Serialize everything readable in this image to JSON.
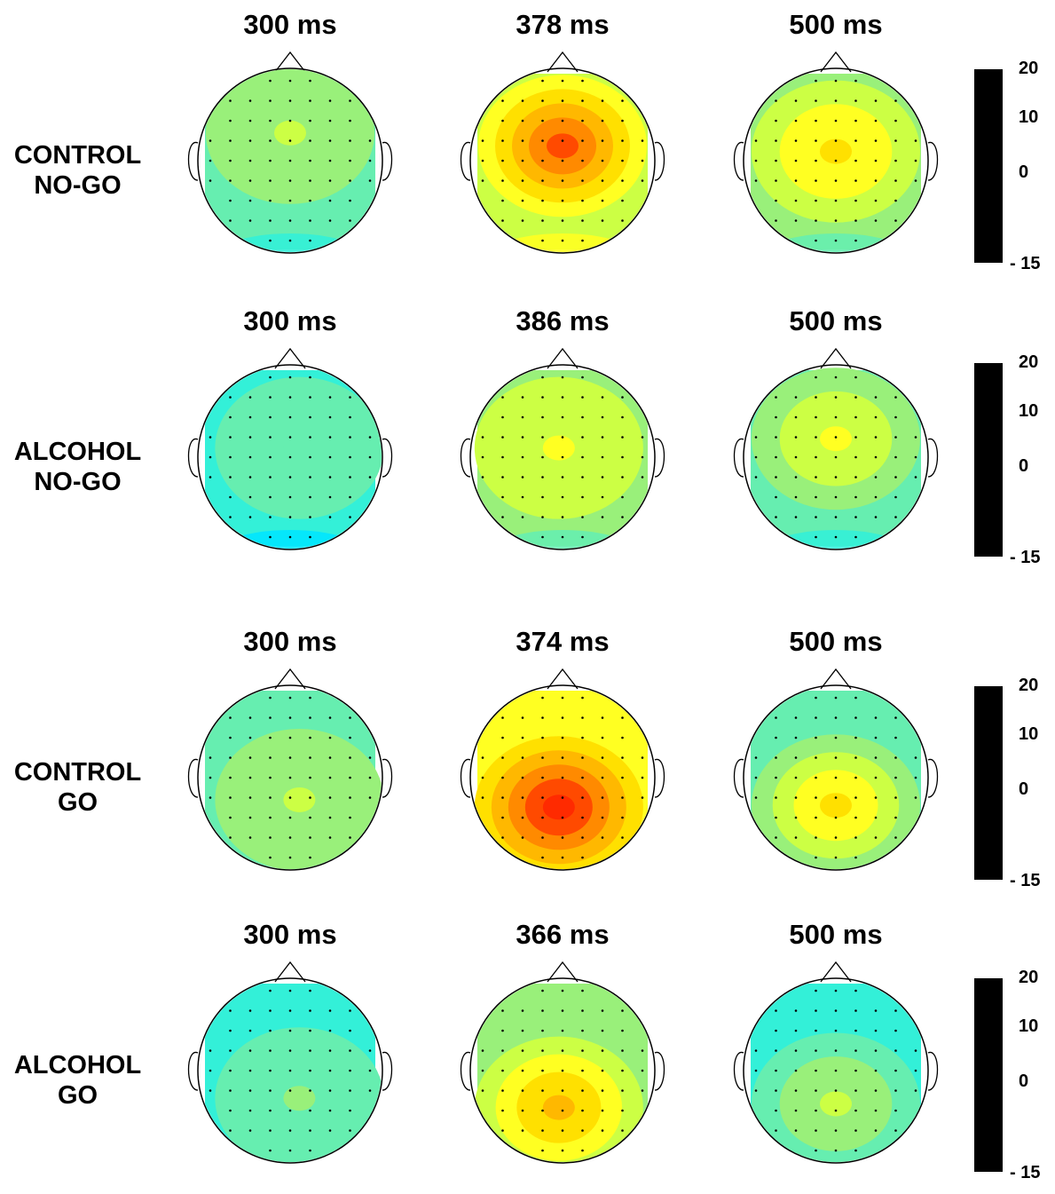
{
  "colorbar": {
    "ticks": [
      "20",
      "10",
      "0",
      "- 15"
    ]
  },
  "palette": {
    "c0": "#00e5ff",
    "c1": "#33f0d8",
    "c2": "#66eeb0",
    "c3": "#99f07a",
    "c4": "#ccff44",
    "c5": "#ffff22",
    "c6": "#ffe000",
    "c7": "#ffb800",
    "c8": "#ff8a00",
    "c9": "#ff4a00",
    "c10": "#ff2a00"
  },
  "rows": [
    {
      "label_line1": "CONTROL",
      "label_line2": "NO-GO",
      "maps": [
        {
          "time": "300 ms",
          "base": "c2",
          "levels": [
            "c3"
          ],
          "peak": "c4",
          "peak_level_x": 0.5,
          "peak_level_y": 0.35,
          "bottom_low": "c1"
        },
        {
          "time": "378 ms",
          "base": "c4",
          "levels": [
            "c5",
            "c6",
            "c7",
            "c8"
          ],
          "peak": "c9",
          "peak_level_x": 0.5,
          "peak_level_y": 0.42,
          "bottom_low": "c5"
        },
        {
          "time": "500 ms",
          "base": "c3",
          "levels": [
            "c4",
            "c5"
          ],
          "peak": "c6",
          "peak_level_x": 0.5,
          "peak_level_y": 0.45,
          "bottom_low": "c2"
        }
      ]
    },
    {
      "label_line1": "ALCOHOL",
      "label_line2": "NO-GO",
      "maps": [
        {
          "time": "300 ms",
          "base": "c1",
          "levels": [
            "c2"
          ],
          "peak": "c2",
          "peak_level_x": 0.55,
          "peak_level_y": 0.45,
          "bottom_low": "c0"
        },
        {
          "time": "386 ms",
          "base": "c3",
          "levels": [
            "c4"
          ],
          "peak": "c5",
          "peak_level_x": 0.48,
          "peak_level_y": 0.45,
          "bottom_low": "c2"
        },
        {
          "time": "500 ms",
          "base": "c2",
          "levels": [
            "c3",
            "c4"
          ],
          "peak": "c5",
          "peak_level_x": 0.5,
          "peak_level_y": 0.4,
          "bottom_low": "c1"
        }
      ]
    },
    {
      "label_line1": "CONTROL",
      "label_line2": "GO",
      "maps": [
        {
          "time": "300 ms",
          "base": "c2",
          "levels": [
            "c3"
          ],
          "peak": "c4",
          "peak_level_x": 0.55,
          "peak_level_y": 0.62,
          "bottom_low": "c2"
        },
        {
          "time": "374 ms",
          "base": "c5",
          "levels": [
            "c6",
            "c7",
            "c8",
            "c9"
          ],
          "peak": "c10",
          "peak_level_x": 0.48,
          "peak_level_y": 0.66,
          "bottom_low": "c7"
        },
        {
          "time": "500 ms",
          "base": "c2",
          "levels": [
            "c3",
            "c4",
            "c5"
          ],
          "peak": "c6",
          "peak_level_x": 0.5,
          "peak_level_y": 0.65,
          "bottom_low": "c3"
        }
      ]
    },
    {
      "label_line1": "ALCOHOL",
      "label_line2": "GO",
      "maps": [
        {
          "time": "300 ms",
          "base": "c1",
          "levels": [
            "c2"
          ],
          "peak": "c3",
          "peak_level_x": 0.55,
          "peak_level_y": 0.65,
          "bottom_low": "c2"
        },
        {
          "time": "366 ms",
          "base": "c3",
          "levels": [
            "c4",
            "c5",
            "c6"
          ],
          "peak": "c7",
          "peak_level_x": 0.48,
          "peak_level_y": 0.7,
          "bottom_low": "c6"
        },
        {
          "time": "500 ms",
          "base": "c1",
          "levels": [
            "c2",
            "c3"
          ],
          "peak": "c4",
          "peak_level_x": 0.5,
          "peak_level_y": 0.68,
          "bottom_low": "c3"
        }
      ]
    }
  ]
}
